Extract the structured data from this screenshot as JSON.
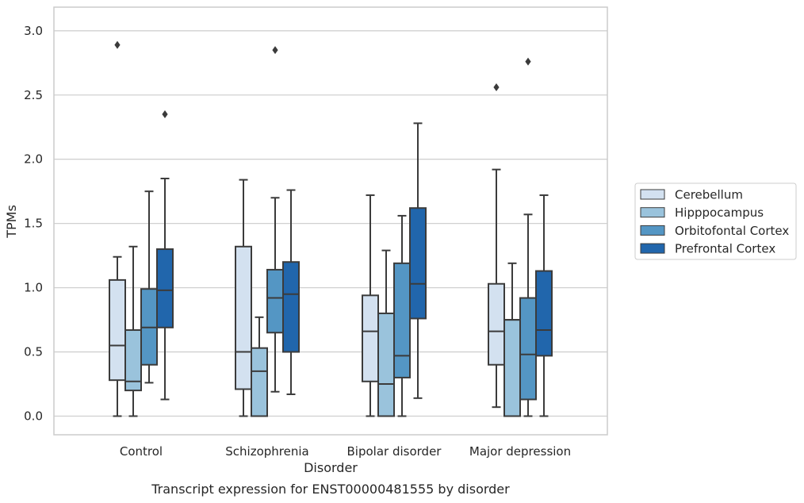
{
  "chart_data": {
    "type": "box",
    "title": "Transcript expression for ENST00000481555 by disorder",
    "xlabel": "Disorder",
    "ylabel": "TPMs",
    "ylim": [
      -0.15,
      3.2
    ],
    "yticks": [
      0.0,
      0.5,
      1.0,
      1.5,
      2.0,
      2.5,
      3.0
    ],
    "ytick_labels": [
      "0.0",
      "0.5",
      "1.0",
      "1.5",
      "2.0",
      "2.5",
      "3.0"
    ],
    "grid": "horizontal",
    "legend_position": "right",
    "categories": [
      "Control",
      "Schizophrenia",
      "Bipolar disorder",
      "Major depression"
    ],
    "series": [
      {
        "name": "Cerebellum",
        "color": "#d3e1f0",
        "boxes": [
          {
            "whisker_low": 0.0,
            "q1": 0.28,
            "median": 0.55,
            "q3": 1.06,
            "whisker_high": 1.24,
            "outliers": [
              2.89
            ]
          },
          {
            "whisker_low": 0.0,
            "q1": 0.21,
            "median": 0.5,
            "q3": 1.32,
            "whisker_high": 1.84,
            "outliers": []
          },
          {
            "whisker_low": 0.0,
            "q1": 0.27,
            "median": 0.66,
            "q3": 0.94,
            "whisker_high": 1.72,
            "outliers": []
          },
          {
            "whisker_low": 0.07,
            "q1": 0.4,
            "median": 0.66,
            "q3": 1.03,
            "whisker_high": 1.92,
            "outliers": [
              2.56
            ]
          }
        ]
      },
      {
        "name": "Hipppocampus",
        "color": "#9ac3dc",
        "boxes": [
          {
            "whisker_low": 0.0,
            "q1": 0.2,
            "median": 0.27,
            "q3": 0.67,
            "whisker_high": 1.32,
            "outliers": []
          },
          {
            "whisker_low": 0.0,
            "q1": 0.0,
            "median": 0.35,
            "q3": 0.53,
            "whisker_high": 0.77,
            "outliers": []
          },
          {
            "whisker_low": 0.0,
            "q1": 0.0,
            "median": 0.25,
            "q3": 0.8,
            "whisker_high": 1.29,
            "outliers": []
          },
          {
            "whisker_low": 0.0,
            "q1": 0.0,
            "median": 0.75,
            "q3": 0.75,
            "whisker_high": 1.19,
            "outliers": []
          }
        ]
      },
      {
        "name": "Orbitofontal Cortex",
        "color": "#5496c4",
        "boxes": [
          {
            "whisker_low": 0.26,
            "q1": 0.4,
            "median": 0.69,
            "q3": 0.99,
            "whisker_high": 1.75,
            "outliers": []
          },
          {
            "whisker_low": 0.19,
            "q1": 0.65,
            "median": 0.92,
            "q3": 1.14,
            "whisker_high": 1.7,
            "outliers": [
              2.85
            ]
          },
          {
            "whisker_low": 0.0,
            "q1": 0.3,
            "median": 0.47,
            "q3": 1.19,
            "whisker_high": 1.56,
            "outliers": []
          },
          {
            "whisker_low": 0.0,
            "q1": 0.13,
            "median": 0.48,
            "q3": 0.92,
            "whisker_high": 1.57,
            "outliers": [
              2.76
            ]
          }
        ]
      },
      {
        "name": "Prefrontal Cortex",
        "color": "#2166ac",
        "boxes": [
          {
            "whisker_low": 0.13,
            "q1": 0.69,
            "median": 0.98,
            "q3": 1.3,
            "whisker_high": 1.85,
            "outliers": [
              2.35
            ]
          },
          {
            "whisker_low": 0.17,
            "q1": 0.5,
            "median": 0.95,
            "q3": 1.2,
            "whisker_high": 1.76,
            "outliers": []
          },
          {
            "whisker_low": 0.14,
            "q1": 0.76,
            "median": 1.03,
            "q3": 1.62,
            "whisker_high": 2.28,
            "outliers": []
          },
          {
            "whisker_low": 0.0,
            "q1": 0.47,
            "median": 0.67,
            "q3": 1.13,
            "whisker_high": 1.72,
            "outliers": []
          }
        ]
      }
    ]
  }
}
